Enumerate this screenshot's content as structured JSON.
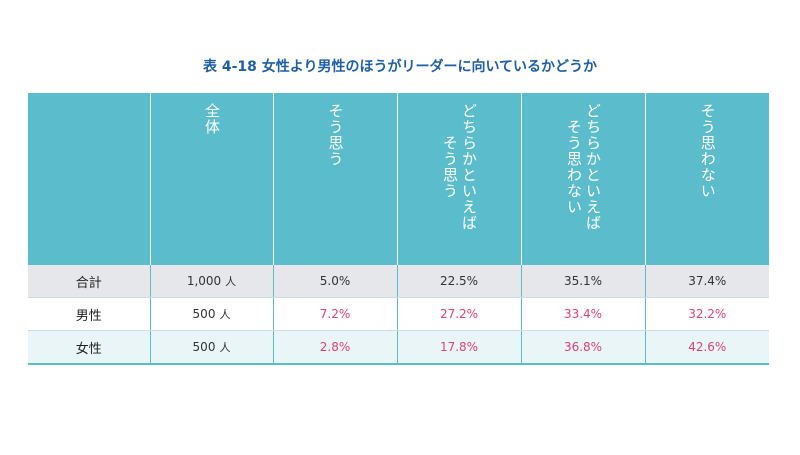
{
  "title": "表 4-18 女性より男性のほうがリーダーに向いているかどうか",
  "headers": [
    "",
    "全体",
    "そう思う",
    "どちらかといえば\nそう思う",
    "どちらかといえば\nそう思わない",
    "そう思わない"
  ],
  "rows": [
    {
      "label": "合計",
      "count": "1,000",
      "unit": "人",
      "values": [
        "5.0%",
        "22.5%",
        "35.1%",
        "37.4%"
      ]
    },
    {
      "label": "男性",
      "count": "500",
      "unit": "人",
      "values": [
        "7.2%",
        "27.2%",
        "33.4%",
        "32.2%"
      ]
    },
    {
      "label": "女性",
      "count": "500",
      "unit": "人",
      "values": [
        "2.8%",
        "17.8%",
        "36.8%",
        "42.6%"
      ]
    }
  ],
  "colors": {
    "header_bg": "#5bbccb",
    "title": "#1f5fa8",
    "highlight": "#e0407f"
  }
}
